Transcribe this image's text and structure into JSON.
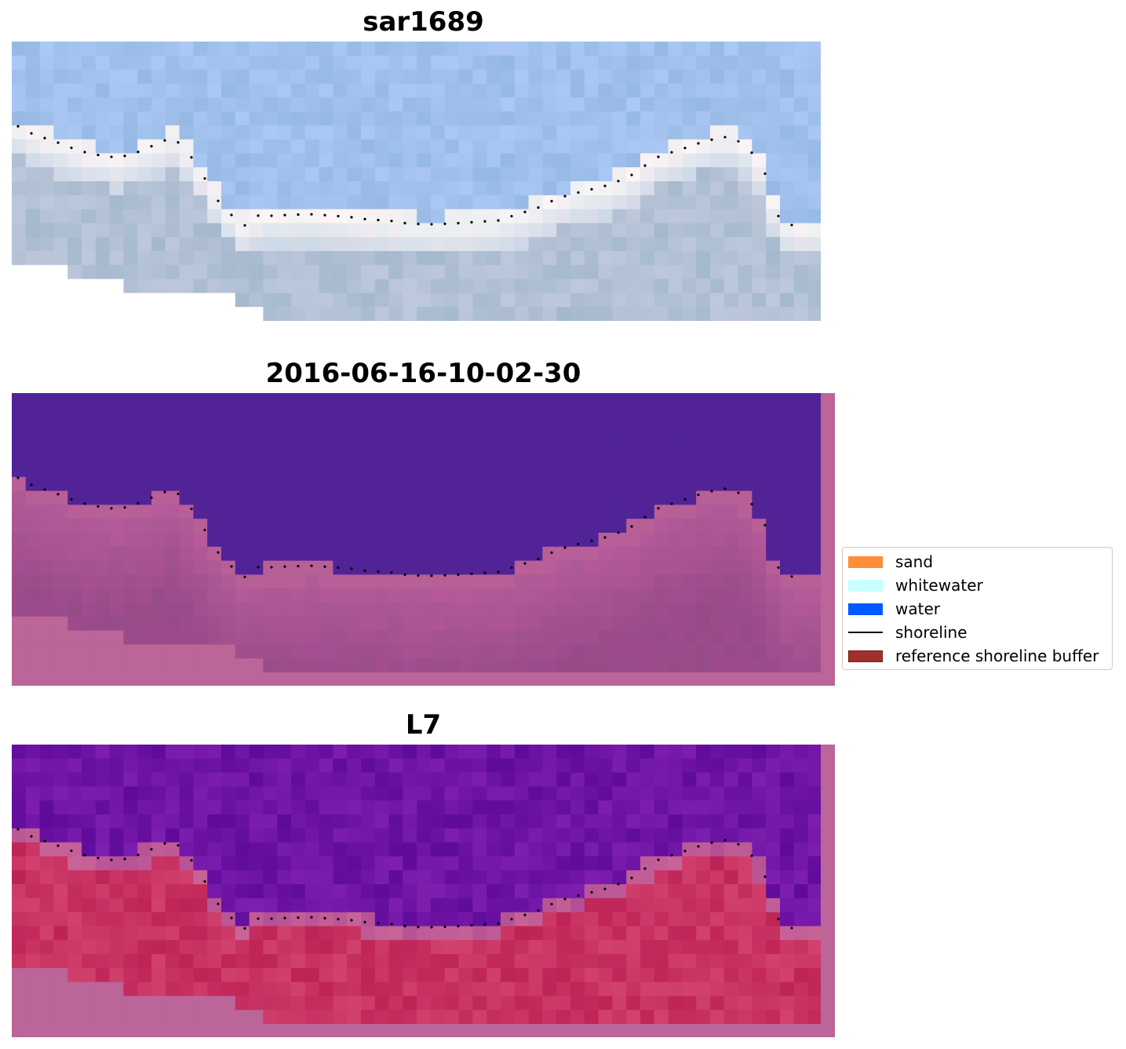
{
  "panels": [
    {
      "title": "sar1689",
      "style": "rgb"
    },
    {
      "title": "2016-06-16-10-02-30",
      "style": "classification"
    },
    {
      "title": "L7",
      "style": "index"
    }
  ],
  "legend": {
    "items": [
      {
        "label": "sand",
        "color": "#ff8c37",
        "kind": "patch"
      },
      {
        "label": "whitewater",
        "color": "#c8ffff",
        "kind": "patch"
      },
      {
        "label": "water",
        "color": "#005aff",
        "kind": "patch"
      },
      {
        "label": "shoreline",
        "color": "#000000",
        "kind": "line"
      },
      {
        "label": "reference shoreline buffer",
        "color": "#a0302c",
        "kind": "patch"
      }
    ]
  },
  "colors": {
    "water_purple": "#512397",
    "buffer_pink": "#bb6598",
    "land_mauve": "#9c4d86",
    "index_red": "#c12851",
    "sky_blue": "#9fbde3"
  }
}
